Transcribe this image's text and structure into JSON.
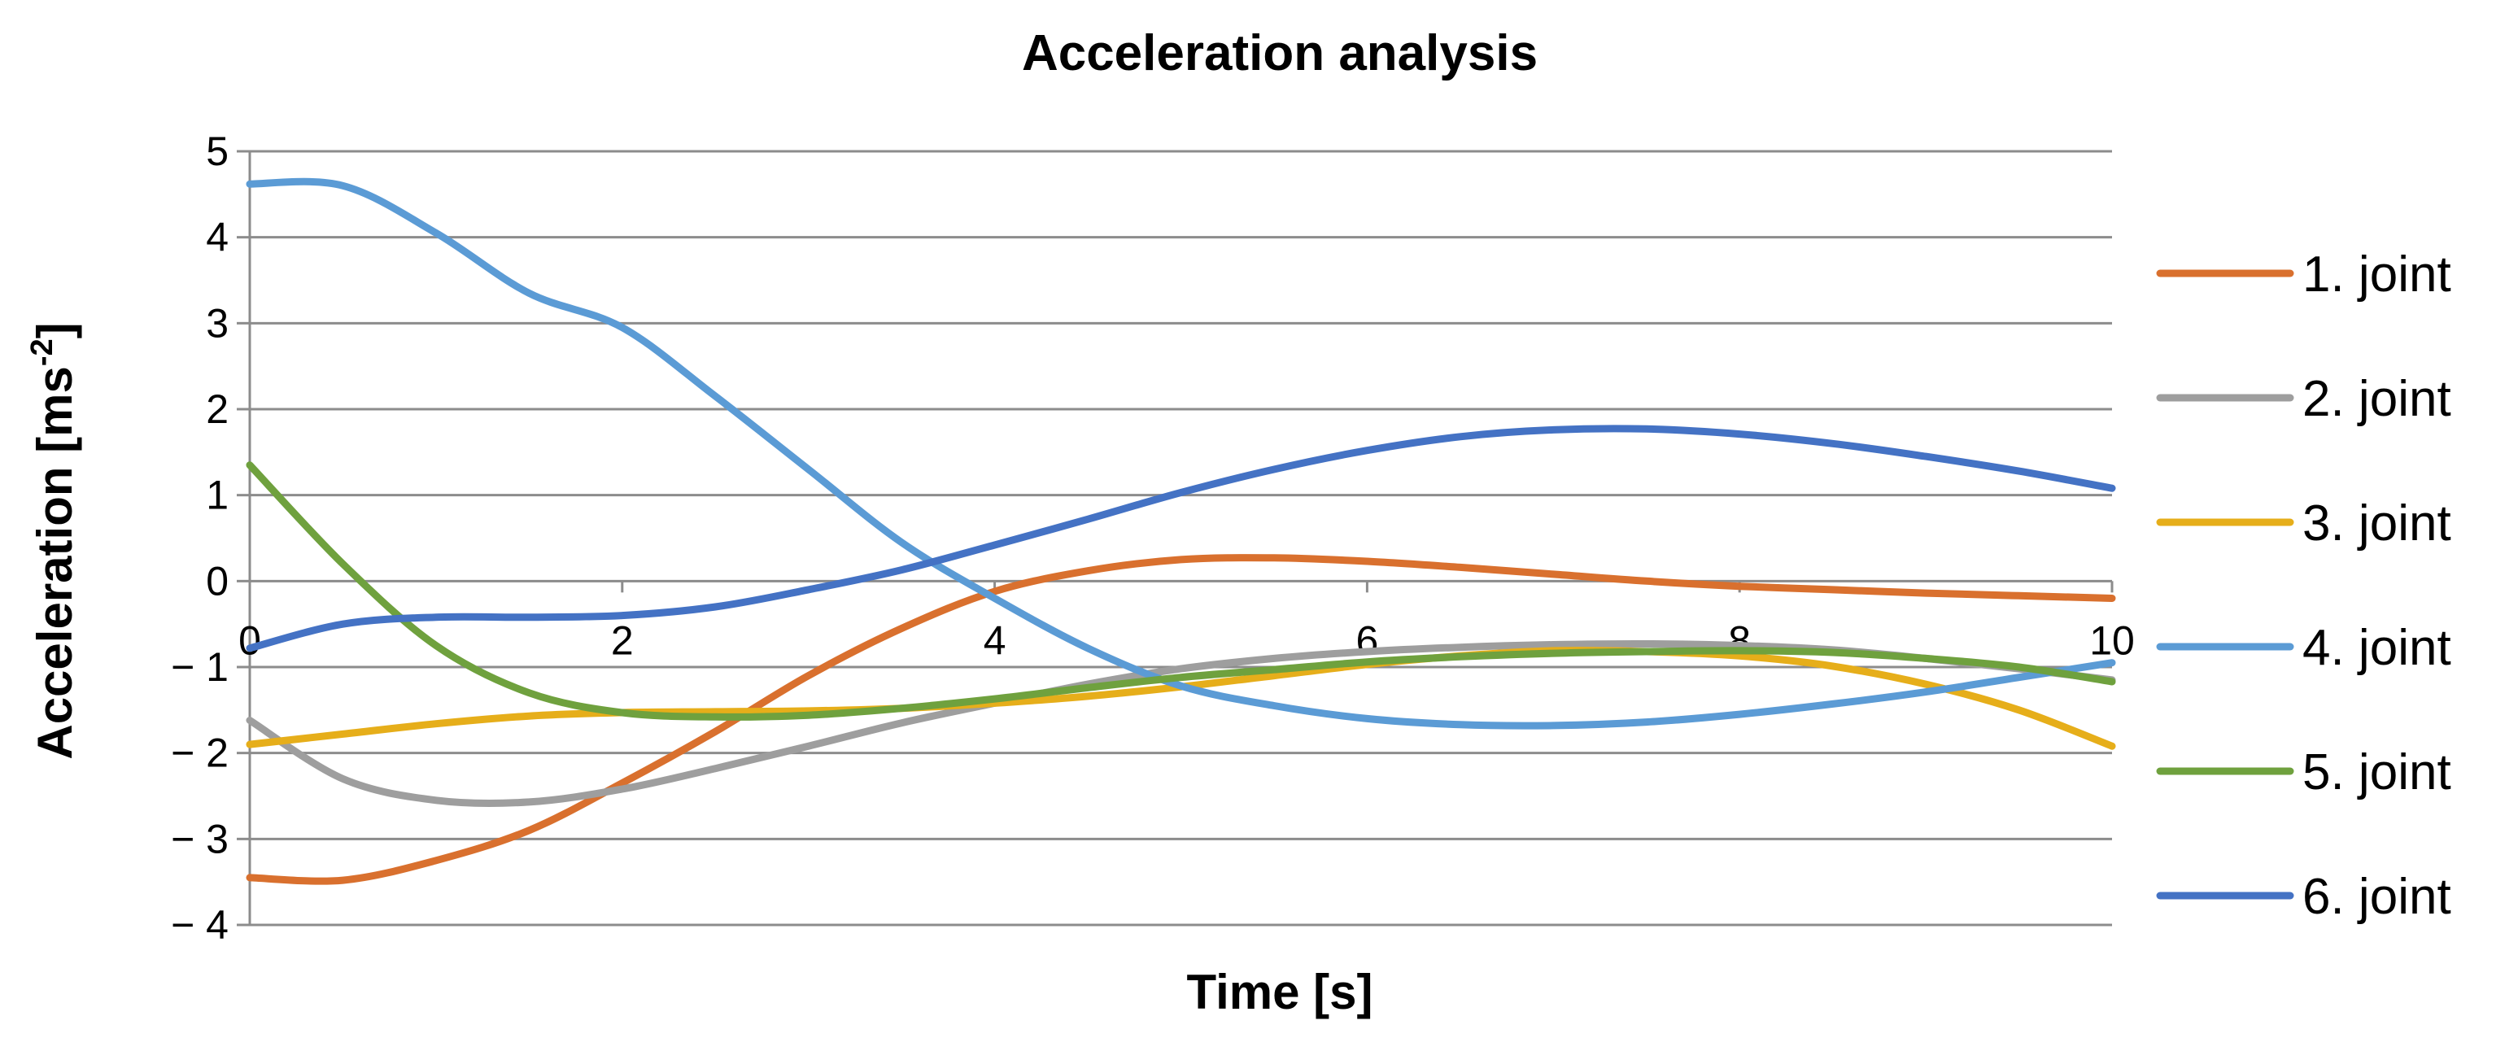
{
  "chart_data": {
    "type": "line",
    "title": "Acceleration analysis",
    "xlabel": "Time [s]",
    "ylabel": "Acceleration [ms",
    "ylabel_sup": "-2",
    "ylabel_suffix": "]",
    "xlim": [
      0,
      10
    ],
    "ylim": [
      -4,
      5
    ],
    "x_ticks": [
      0,
      2,
      4,
      6,
      8,
      10
    ],
    "x_tick_labels": [
      "0",
      "2",
      "4",
      "6",
      "8",
      "10"
    ],
    "y_ticks": [
      5,
      4,
      3,
      2,
      1,
      0,
      -1,
      -2,
      -3,
      -4
    ],
    "y_tick_labels": [
      "5",
      "4",
      "3",
      "2",
      "1",
      "0",
      "− 1",
      "− 2",
      "− 3",
      "− 4"
    ],
    "grid": true,
    "legend_position": "right",
    "x": [
      0,
      0.5,
      1,
      1.5,
      2,
      2.5,
      3,
      3.5,
      4,
      4.5,
      5,
      5.5,
      6,
      6.5,
      7,
      7.5,
      8,
      8.5,
      9,
      9.5,
      10
    ],
    "series": [
      {
        "name": "1. joint",
        "color": "#D9702E",
        "values": [
          -3.45,
          -3.48,
          -3.25,
          -2.9,
          -2.35,
          -1.75,
          -1.1,
          -0.55,
          -0.12,
          0.12,
          0.25,
          0.27,
          0.23,
          0.16,
          0.08,
          0.0,
          -0.06,
          -0.1,
          -0.14,
          -0.17,
          -0.2
        ]
      },
      {
        "name": "2. joint",
        "color": "#9E9E9E",
        "values": [
          -1.62,
          -2.3,
          -2.55,
          -2.57,
          -2.42,
          -2.18,
          -1.92,
          -1.65,
          -1.42,
          -1.2,
          -1.02,
          -0.9,
          -0.82,
          -0.77,
          -0.74,
          -0.73,
          -0.75,
          -0.8,
          -0.9,
          -1.02,
          -1.15
        ]
      },
      {
        "name": "3. joint",
        "color": "#E6AE1A",
        "values": [
          -1.9,
          -1.78,
          -1.66,
          -1.57,
          -1.53,
          -1.52,
          -1.51,
          -1.48,
          -1.42,
          -1.34,
          -1.23,
          -1.1,
          -0.97,
          -0.87,
          -0.81,
          -0.82,
          -0.87,
          -0.99,
          -1.2,
          -1.5,
          -1.92
        ]
      },
      {
        "name": "4. joint",
        "color": "#5B9BD5",
        "values": [
          4.62,
          4.6,
          4.05,
          3.35,
          2.95,
          2.15,
          1.3,
          0.45,
          -0.2,
          -0.78,
          -1.22,
          -1.45,
          -1.6,
          -1.67,
          -1.68,
          -1.64,
          -1.55,
          -1.43,
          -1.29,
          -1.12,
          -0.95
        ]
      },
      {
        "name": "5. joint",
        "color": "#6FA13E",
        "values": [
          1.35,
          0.2,
          -0.75,
          -1.3,
          -1.53,
          -1.58,
          -1.56,
          -1.48,
          -1.37,
          -1.24,
          -1.12,
          -1.03,
          -0.94,
          -0.88,
          -0.84,
          -0.82,
          -0.81,
          -0.83,
          -0.9,
          -1.0,
          -1.17
        ]
      },
      {
        "name": "6. joint",
        "color": "#4472C4",
        "values": [
          -0.78,
          -0.5,
          -0.42,
          -0.42,
          -0.4,
          -0.3,
          -0.1,
          0.13,
          0.42,
          0.72,
          1.03,
          1.3,
          1.52,
          1.68,
          1.76,
          1.77,
          1.71,
          1.6,
          1.45,
          1.28,
          1.08
        ]
      }
    ]
  }
}
